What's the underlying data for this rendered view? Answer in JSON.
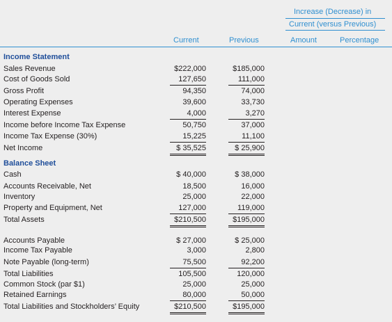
{
  "header": {
    "group": [
      "Increase (Decrease) in",
      "Current (versus Previous)"
    ],
    "current": "Current",
    "previous": "Previous",
    "amount": "Amount",
    "percentage": "Percentage"
  },
  "income_statement": {
    "title": "Income Statement",
    "rows": [
      {
        "label": "Sales Revenue",
        "current": "$222,000",
        "previous": "$185,000"
      },
      {
        "label": "Cost of Goods Sold",
        "current": "127,650",
        "previous": "111,000"
      },
      {
        "label": "Gross Profit",
        "current": "94,350",
        "previous": "74,000"
      },
      {
        "label": "Operating Expenses",
        "current": "39,600",
        "previous": "33,730"
      },
      {
        "label": "Interest Expense",
        "current": "4,000",
        "previous": "3,270"
      },
      {
        "label": "Income before Income Tax Expense",
        "current": "50,750",
        "previous": "37,000"
      },
      {
        "label": "Income Tax Expense (30%)",
        "current": "15,225",
        "previous": "11,100"
      },
      {
        "label": "Net Income",
        "current": "$ 35,525",
        "previous": "$ 25,900"
      }
    ]
  },
  "balance_sheet": {
    "title": "Balance Sheet",
    "rows": [
      {
        "label": "Cash",
        "current": "$ 40,000",
        "previous": "$ 38,000"
      },
      {
        "label": "Accounts Receivable, Net",
        "current": "18,500",
        "previous": "16,000"
      },
      {
        "label": "Inventory",
        "current": "25,000",
        "previous": "22,000"
      },
      {
        "label": "Property and Equipment, Net",
        "current": "127,000",
        "previous": "119,000"
      },
      {
        "label": "Total Assets",
        "current": "$210,500",
        "previous": "$195,000"
      },
      {
        "label": "Accounts Payable",
        "current": "$ 27,000",
        "previous": "$ 25,000"
      },
      {
        "label": "Income Tax Payable",
        "current": "3,000",
        "previous": "2,800"
      },
      {
        "label": "Note Payable (long-term)",
        "current": "75,500",
        "previous": "92,200"
      },
      {
        "label": "Total Liabilities",
        "current": "105,500",
        "previous": "120,000"
      },
      {
        "label": "Common Stock (par $1)",
        "current": "25,000",
        "previous": "25,000"
      },
      {
        "label": "Retained Earnings",
        "current": "80,000",
        "previous": "50,000"
      },
      {
        "label": "Total Liabilities and Stockholders’ Equity",
        "current": "$210,500",
        "previous": "$195,000"
      }
    ]
  }
}
